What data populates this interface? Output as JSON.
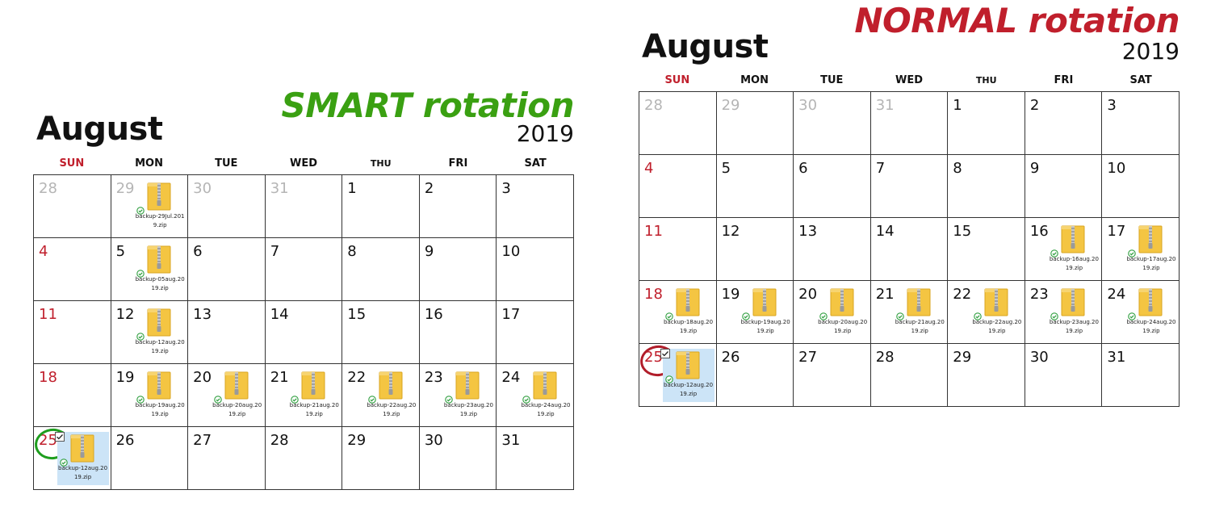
{
  "colors": {
    "smart": "#3aa012",
    "normal": "#c01f2c",
    "sunday": "#c01f2c",
    "outside_month": "#b5b5b5",
    "selected_bg": "#cce4f7",
    "zip_folder": "#f4c542"
  },
  "weekdays": [
    "SUN",
    "MON",
    "TUE",
    "WED",
    "THU",
    "FRI",
    "SAT"
  ],
  "panels": [
    {
      "headline": "SMART rotation",
      "month": "August",
      "year": "2019",
      "weeks": [
        [
          {
            "day": "28",
            "outside": true
          },
          {
            "day": "29",
            "outside": true,
            "file": "backup-29Jul.2019.zip"
          },
          {
            "day": "30",
            "outside": true
          },
          {
            "day": "31",
            "outside": true
          },
          {
            "day": "1"
          },
          {
            "day": "2"
          },
          {
            "day": "3"
          }
        ],
        [
          {
            "day": "4"
          },
          {
            "day": "5",
            "file": "backup-05aug.2019.zip"
          },
          {
            "day": "6"
          },
          {
            "day": "7"
          },
          {
            "day": "8"
          },
          {
            "day": "9"
          },
          {
            "day": "10"
          }
        ],
        [
          {
            "day": "11"
          },
          {
            "day": "12",
            "file": "backup-12aug.2019.zip"
          },
          {
            "day": "13"
          },
          {
            "day": "14"
          },
          {
            "day": "15"
          },
          {
            "day": "16"
          },
          {
            "day": "17"
          }
        ],
        [
          {
            "day": "18"
          },
          {
            "day": "19",
            "file": "backup-19aug.2019.zip"
          },
          {
            "day": "20",
            "file": "backup-20aug.2019.zip"
          },
          {
            "day": "21",
            "file": "backup-21aug.2019.zip"
          },
          {
            "day": "22",
            "file": "backup-22aug.2019.zip"
          },
          {
            "day": "23",
            "file": "backup-23aug.2019.zip"
          },
          {
            "day": "24",
            "file": "backup-24aug.2019.zip"
          }
        ],
        [
          {
            "day": "25",
            "circled": true,
            "file": "backup-12aug.2019.zip",
            "selected": true
          },
          {
            "day": "26"
          },
          {
            "day": "27"
          },
          {
            "day": "28"
          },
          {
            "day": "29"
          },
          {
            "day": "30"
          },
          {
            "day": "31"
          }
        ]
      ]
    },
    {
      "headline": "NORMAL rotation",
      "month": "August",
      "year": "2019",
      "weeks": [
        [
          {
            "day": "28",
            "outside": true
          },
          {
            "day": "29",
            "outside": true
          },
          {
            "day": "30",
            "outside": true
          },
          {
            "day": "31",
            "outside": true
          },
          {
            "day": "1"
          },
          {
            "day": "2"
          },
          {
            "day": "3"
          }
        ],
        [
          {
            "day": "4"
          },
          {
            "day": "5"
          },
          {
            "day": "6"
          },
          {
            "day": "7"
          },
          {
            "day": "8"
          },
          {
            "day": "9"
          },
          {
            "day": "10"
          }
        ],
        [
          {
            "day": "11"
          },
          {
            "day": "12"
          },
          {
            "day": "13"
          },
          {
            "day": "14"
          },
          {
            "day": "15"
          },
          {
            "day": "16",
            "file": "backup-16aug.2019.zip"
          },
          {
            "day": "17",
            "file": "backup-17aug.2019.zip"
          }
        ],
        [
          {
            "day": "18",
            "file": "backup-18aug.2019.zip"
          },
          {
            "day": "19",
            "file": "backup-19aug.2019.zip"
          },
          {
            "day": "20",
            "file": "backup-20aug.2019.zip"
          },
          {
            "day": "21",
            "file": "backup-21aug.2019.zip"
          },
          {
            "day": "22",
            "file": "backup-22aug.2019.zip"
          },
          {
            "day": "23",
            "file": "backup-23aug.2019.zip"
          },
          {
            "day": "24",
            "file": "backup-24aug.2019.zip"
          }
        ],
        [
          {
            "day": "25",
            "circled": true,
            "file": "backup-12aug.2019.zip",
            "selected": true
          },
          {
            "day": "26"
          },
          {
            "day": "27"
          },
          {
            "day": "28"
          },
          {
            "day": "29"
          },
          {
            "day": "30"
          },
          {
            "day": "31"
          }
        ]
      ]
    }
  ]
}
